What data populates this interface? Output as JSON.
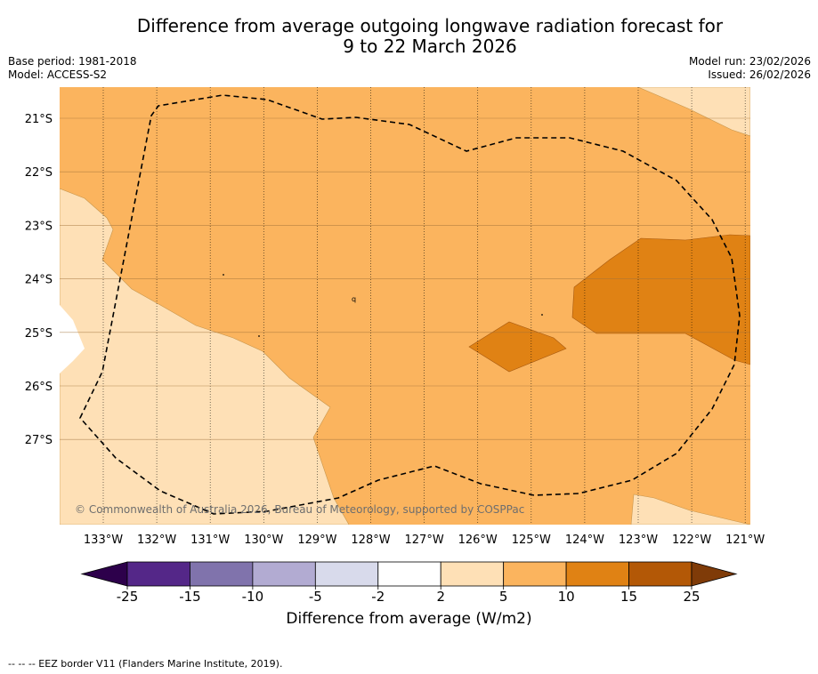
{
  "title": {
    "line1": "Difference from average outgoing longwave radiation forecast for",
    "line2": "9 to 22 March 2026"
  },
  "meta": {
    "base_period": "Base period: 1981-2018",
    "model": "Model: ACCESS-S2",
    "model_run": "Model run: 23/02/2026",
    "issued": "Issued: 26/02/2026"
  },
  "map": {
    "copyright": "© Commonwealth of Australia 2026, Bureau of Meteorology, supported by COSPPac",
    "lon_labels": [
      "133°W",
      "132°W",
      "131°W",
      "130°W",
      "129°W",
      "128°W",
      "127°W",
      "126°W",
      "125°W",
      "124°W",
      "123°W",
      "122°W",
      "121°W"
    ],
    "lat_labels": [
      "21°S",
      "22°S",
      "23°S",
      "24°S",
      "25°S",
      "26°S",
      "27°S"
    ],
    "stray_mark": "q"
  },
  "colorbar": {
    "title": "Difference from average (W/m2)",
    "ticks": [
      "-25",
      "-15",
      "-10",
      "-5",
      "-2",
      "2",
      "5",
      "10",
      "15",
      "25"
    ],
    "colors": {
      "below": "#2d004b",
      "bins": [
        "#542788",
        "#8073ac",
        "#b2abd2",
        "#d8daeb",
        "#ffffff",
        "#fee0b6",
        "#fbb45e",
        "#e08214",
        "#b35806"
      ],
      "above": "#7f3b08"
    }
  },
  "footer": {
    "legend": "--  --  -- EEZ border V11 (Flanders Marine Institute, 2019)."
  }
}
